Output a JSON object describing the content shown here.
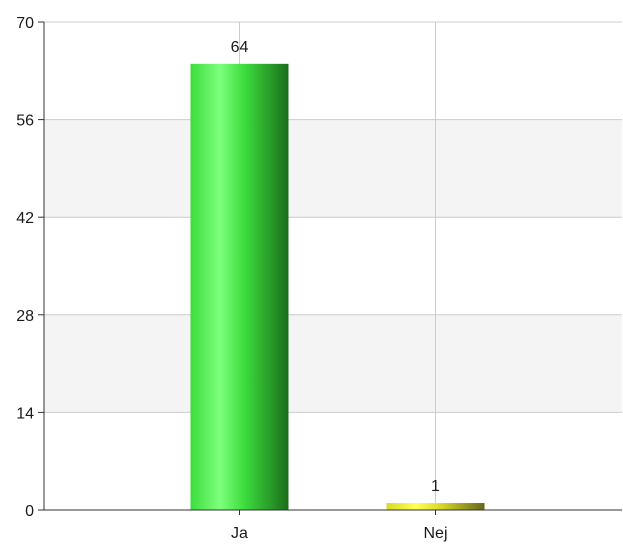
{
  "chart_data": {
    "type": "bar",
    "categories": [
      "Ja",
      "Nej"
    ],
    "values": [
      64,
      1
    ],
    "title": "",
    "xlabel": "",
    "ylabel": "",
    "ylim": [
      0,
      70
    ],
    "yticks": [
      0,
      14,
      28,
      42,
      56,
      70
    ],
    "grid": true,
    "bar_colors": [
      {
        "light": "#7dff7d",
        "mid": "#3ddc3d",
        "dark": "#1a6e1a"
      },
      {
        "light": "#ffff55",
        "mid": "#d9d92a",
        "dark": "#66661a"
      }
    ],
    "band_color": "#f4f4f4",
    "grid_color": "#cccccc",
    "axis_color": "#333333"
  }
}
